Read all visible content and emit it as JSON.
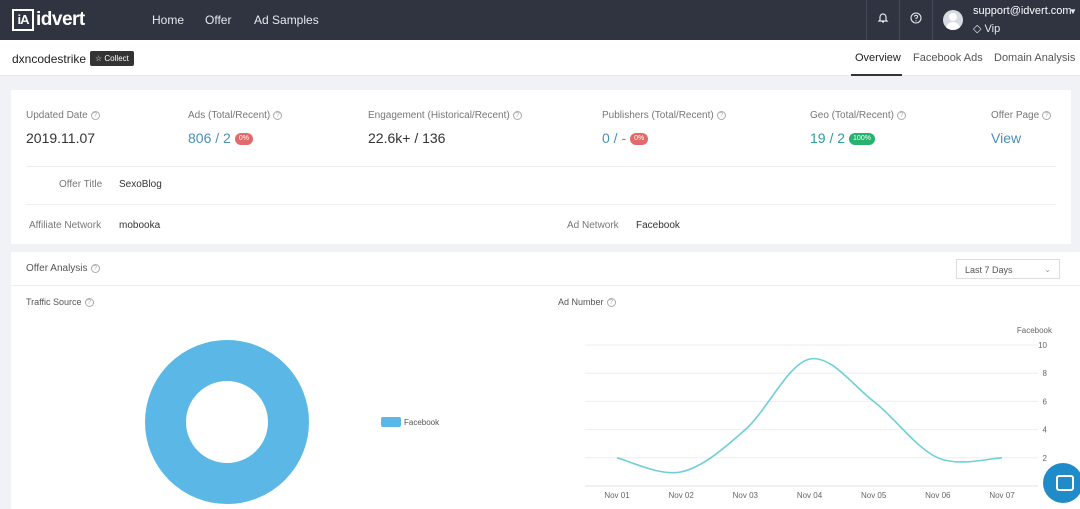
{
  "nav": {
    "logo_box": "iA",
    "logo_text": "idvert",
    "links": [
      "Home",
      "Offer",
      "Ad Samples"
    ],
    "email": "support@idvert.com",
    "tier": "Vip"
  },
  "subheader": {
    "offer_name": "dxncodestrike",
    "collect_label": "Collect",
    "tabs": [
      "Overview",
      "Facebook Ads",
      "Domain Analysis"
    ]
  },
  "stats": [
    {
      "label": "Updated Date",
      "value": "2019.11.07"
    },
    {
      "label": "Ads (Total/Recent)",
      "value": "806 / 2",
      "badge": "0%"
    },
    {
      "label": "Engagement (Historical/Recent)",
      "value": "22.6k+ / 136"
    },
    {
      "label": "Publishers (Total/Recent)",
      "value": "0 / -",
      "badge": "0%"
    },
    {
      "label": "Geo (Total/Recent)",
      "value": "19 / 2",
      "badge": "100%"
    },
    {
      "label": "Offer Page",
      "value": "View"
    }
  ],
  "info": {
    "offer_title_label": "Offer Title",
    "offer_title": "SexoBlog",
    "affiliate_label": "Affiliate Network",
    "affiliate": "mobooka",
    "ad_network_label": "Ad Network",
    "ad_network": "Facebook"
  },
  "analysis": {
    "title": "Offer Analysis",
    "range": "Last 7 Days",
    "traffic_title": "Traffic Source",
    "ad_number_title": "Ad Number"
  },
  "colors": {
    "accent": "#5bb8e6",
    "line": "#6ecfd6"
  },
  "chart_data": [
    {
      "type": "pie",
      "categories": [
        "Facebook"
      ],
      "values": [
        100
      ],
      "title": "Traffic Source",
      "legend": "right"
    },
    {
      "type": "line",
      "title": "Ad Number",
      "x": [
        "Nov 01",
        "Nov 02",
        "Nov 03",
        "Nov 04",
        "Nov 05",
        "Nov 06",
        "Nov 07"
      ],
      "series": [
        {
          "name": "Facebook",
          "values": [
            2,
            1,
            4,
            9,
            6,
            2,
            2
          ]
        }
      ],
      "ylim": [
        0,
        10
      ],
      "yticks": [
        2,
        4,
        6,
        8,
        10
      ],
      "grid": true,
      "legend": "top-right"
    }
  ]
}
